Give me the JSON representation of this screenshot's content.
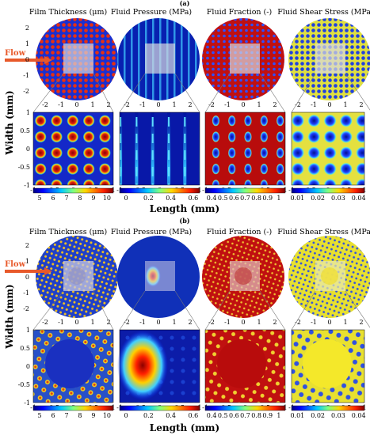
{
  "figure": {
    "panel_a_label": "(a)",
    "panel_b_label": "(b)",
    "flow_label": "Flow",
    "y_axis_label": "Width (mm)",
    "x_axis_label": "Length (mm)",
    "column_titles": [
      "Film Thickness (μm)",
      "Fluid Pressure (MPa)",
      "Fluid Fraction (-)",
      "Fluid Shear Stress (MPa)"
    ],
    "disk_ticks_x": [
      "-2",
      "-1",
      "0",
      "1",
      "2"
    ],
    "disk_ticks_y": [
      "2",
      "1",
      "0",
      "-1",
      "-2"
    ],
    "zoom_ticks_x": [
      "-0.5",
      "0",
      "0.5",
      "1"
    ],
    "zoom_ticks_x_left": "-1",
    "zoom_ticks_y": [
      "1",
      "0.5",
      "0",
      "-0.5",
      "-1"
    ],
    "colorbars": [
      {
        "name": "film-thickness",
        "ticks": [
          "5",
          "6",
          "7",
          "8",
          "9",
          "10"
        ],
        "colormap": "jet"
      },
      {
        "name": "fluid-pressure",
        "ticks": [
          "0",
          "0.2",
          "0.4",
          "0.6"
        ],
        "colormap": "jet"
      },
      {
        "name": "fluid-fraction",
        "ticks": [
          "0.4",
          "0.5",
          "0.6",
          "0.7",
          "0.8",
          "0.9",
          "1"
        ],
        "colormap": "jet"
      },
      {
        "name": "fluid-shear-stress",
        "ticks": [
          "0.01",
          "0.02",
          "0.03",
          "0.04"
        ],
        "colormap": "jet"
      }
    ],
    "colors": {
      "flow_arrow": "#e8592a",
      "jet_dark_blue": "#00007f",
      "jet_red": "#b00000",
      "jet_yellow": "#f4e82a"
    }
  }
}
